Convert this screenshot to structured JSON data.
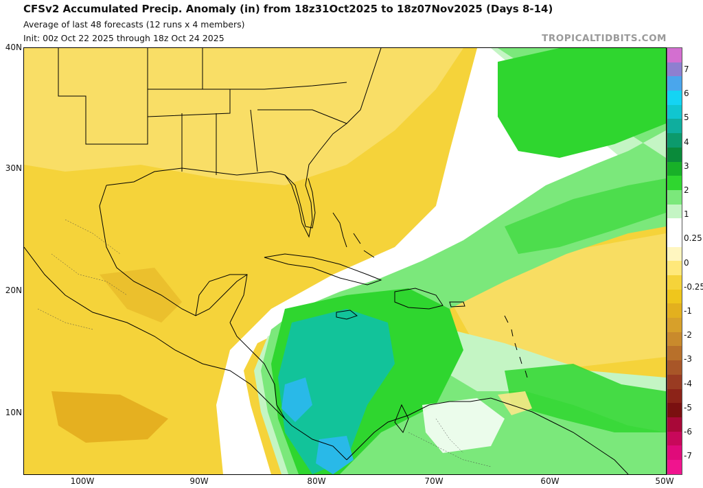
{
  "header": {
    "title": "CFSv2 Accumulated Precip. Anomaly (in) from 18z31Oct2025 to 18z07Nov2025 (Days 8-14)",
    "subtitle_1": "Average of last 48 forecasts (12 runs x 4 members)",
    "subtitle_2": "Init: 00z Oct 22 2025 through 18z Oct 24 2025",
    "brand": "TROPICALTIDBITS.COM"
  },
  "axes": {
    "lat_labels": [
      "40N",
      "30N",
      "20N",
      "10N"
    ],
    "lon_labels": [
      "100W",
      "90W",
      "80W",
      "70W",
      "60W",
      "50W"
    ]
  },
  "colorbar": {
    "labels": [
      "7",
      "6",
      "5",
      "4",
      "3",
      "2",
      "1",
      "0.25",
      "0",
      "-0.25",
      "-1",
      "-2",
      "-3",
      "-4",
      "-5",
      "-6",
      "-7"
    ],
    "colors": [
      "#d36fd0",
      "#8e7fd0",
      "#4aa6ec",
      "#14d4f4",
      "#10c6d0",
      "#0fae9e",
      "#0c9a6c",
      "#0a8a3a",
      "#18b028",
      "#2fd62f",
      "#7be87b",
      "#c4f5c4",
      "#ffffff",
      "#ffffff",
      "#fff6c0",
      "#ffe87a",
      "#f5d33a",
      "#efc61c",
      "#e3b01e",
      "#d7a02a",
      "#c98a2c",
      "#b8702a",
      "#a85628",
      "#993b22",
      "#8c2318",
      "#7a1010",
      "#a80838",
      "#c8085a",
      "#e00a7a",
      "#f0148e"
    ]
  },
  "map": {
    "colors": {
      "yellow": "#f5d33a",
      "light_yellow": "#fbe88a",
      "dark_yellow": "#e5b020",
      "white": "#ffffff",
      "light_green": "#c4f5c4",
      "green": "#7be87b",
      "bright_green": "#2fd62f",
      "teal": "#12c39a",
      "cyan": "#29b9e8",
      "border": "#000000"
    }
  }
}
